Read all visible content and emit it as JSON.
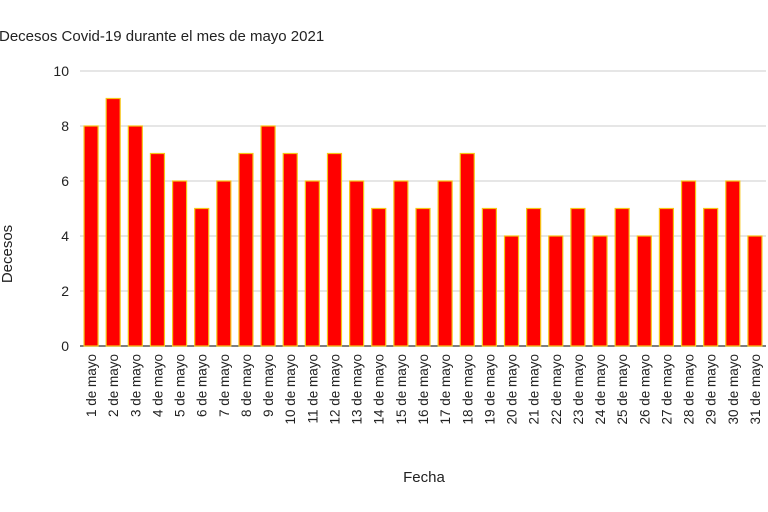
{
  "chart_data": {
    "type": "bar",
    "title": "Decesos Covid-19 durante el mes de mayo 2021",
    "xlabel": "Fecha",
    "ylabel": "Decesos",
    "ylim": [
      0,
      10
    ],
    "yticks": [
      0,
      2,
      4,
      6,
      8,
      10
    ],
    "grid": true,
    "legend": "none",
    "categories": [
      "1 de mayo",
      "2 de mayo",
      "3 de mayo",
      "4 de mayo",
      "5 de mayo",
      "6 de mayo",
      "7 de mayo",
      "8 de mayo",
      "9 de mayo",
      "10 de mayo",
      "11 de mayo",
      "12 de mayo",
      "13 de mayo",
      "14 de mayo",
      "15 de mayo",
      "16 de mayo",
      "17 de mayo",
      "18 de mayo",
      "19 de mayo",
      "20 de mayo",
      "21 de mayo",
      "22 de mayo",
      "23 de mayo",
      "24 de mayo",
      "25 de mayo",
      "26 de mayo",
      "27 de mayo",
      "28 de mayo",
      "29 de mayo",
      "30 de mayo",
      "31 de mayo"
    ],
    "series": [
      {
        "name": "",
        "values": [
          8,
          9,
          8,
          7,
          6,
          5,
          6,
          7,
          8,
          7,
          6,
          7,
          6,
          5,
          6,
          5,
          6,
          7,
          5,
          4,
          5,
          4,
          5,
          4,
          5,
          4,
          5,
          6,
          5,
          6,
          4
        ]
      }
    ],
    "colors": {
      "bar_fill": "#ff0000",
      "bar_stroke": "#f5c518",
      "grid": "#cccccc",
      "axis": "#333333"
    }
  }
}
